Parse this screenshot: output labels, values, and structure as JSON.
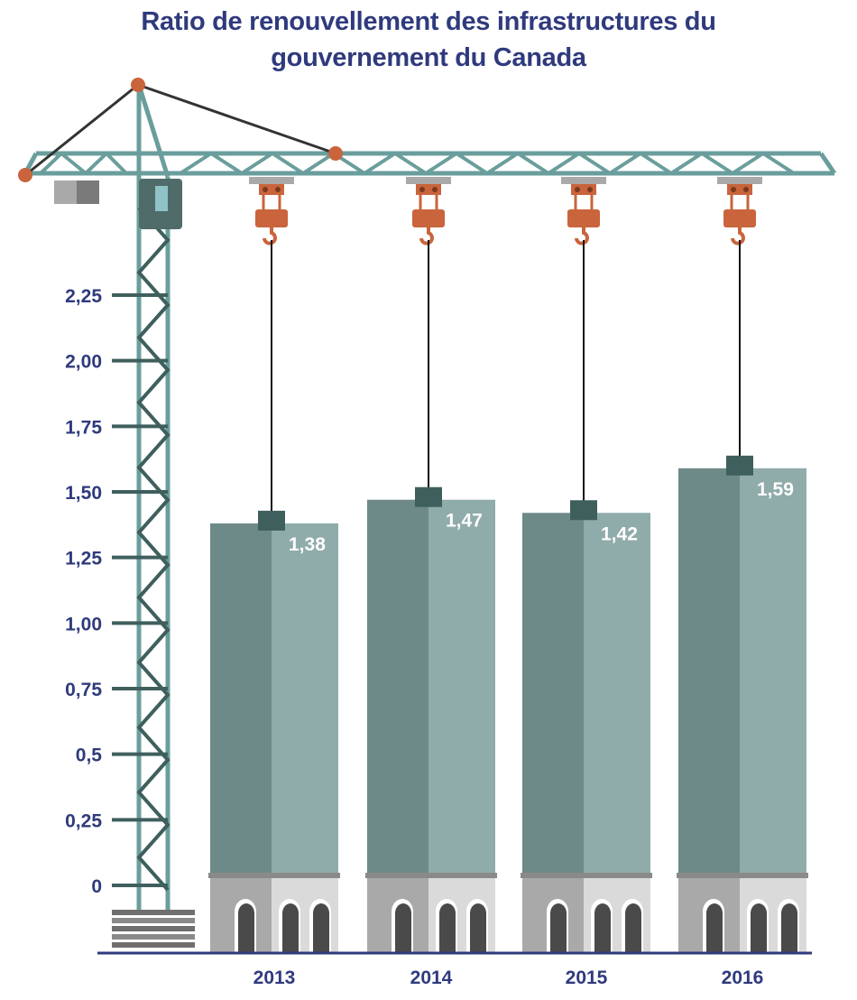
{
  "chart_data": {
    "type": "bar",
    "title_lines": [
      "Ratio de renouvellement des infrastructures du",
      "gouvernement du Canada"
    ],
    "categories": [
      "2013",
      "2014",
      "2015",
      "2016"
    ],
    "values": [
      1.38,
      1.47,
      1.42,
      1.59
    ],
    "value_labels": [
      "1,38",
      "1,47",
      "1,42",
      "1,59"
    ],
    "y_ticks": [
      0,
      0.25,
      0.5,
      0.75,
      1.0,
      1.25,
      1.5,
      1.75,
      2.0,
      2.25
    ],
    "y_tick_labels": [
      "0",
      "0,25",
      "0,5",
      "0,75",
      "1,00",
      "1,25",
      "1,50",
      "1,75",
      "2,00",
      "2,25"
    ],
    "ylim": [
      0,
      2.25
    ],
    "xlabel": "",
    "ylabel": "",
    "grid": false,
    "colors": {
      "title": "#2f3a7d",
      "bar_dark": "#6e8a88",
      "bar_light": "#90acaa",
      "crane": "#6a9e9c",
      "crane_dark": "#3f5f5d",
      "hook": "#c9643c",
      "base_dark": "#a9a9a9",
      "base_light": "#dadada",
      "arch": "#4a4a4a"
    }
  }
}
